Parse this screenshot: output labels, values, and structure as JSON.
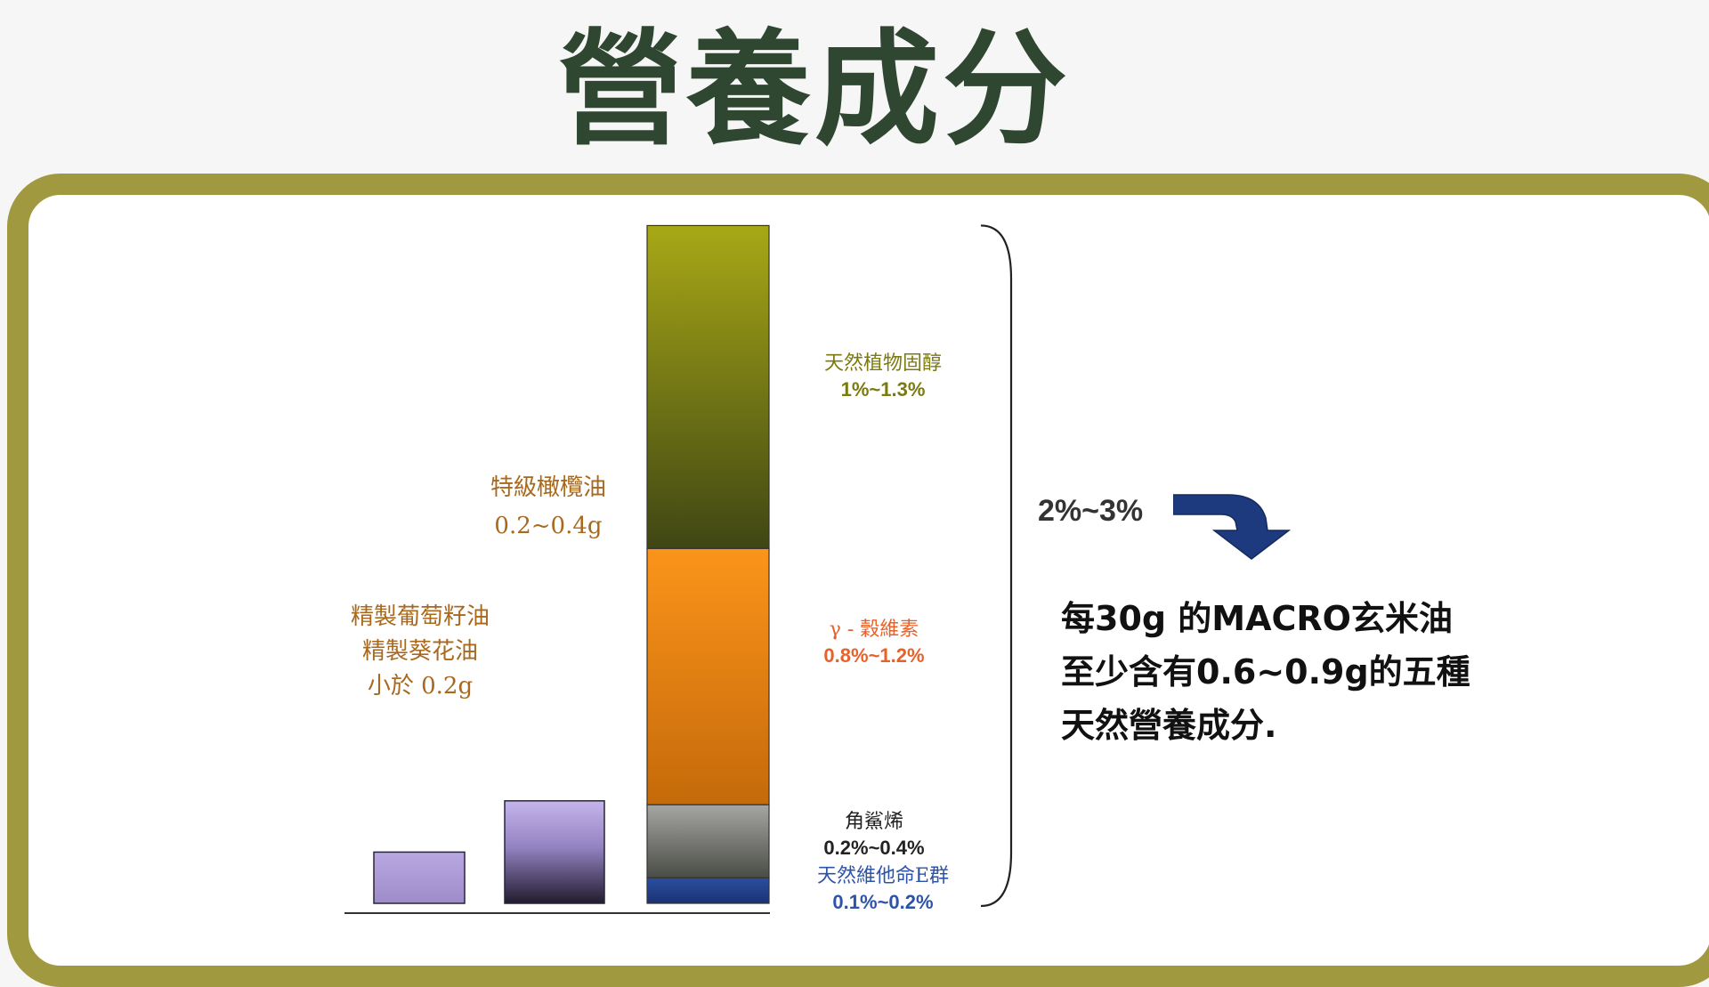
{
  "title": "營養成分",
  "chart_data": {
    "type": "bar",
    "title": "",
    "xlabel": "",
    "ylabel": "",
    "bars": [
      {
        "label_lines": [
          "精製葡萄籽油",
          "精製葵花油",
          "小於 0.2g"
        ],
        "value": 0.2,
        "color": "#b7a6de"
      },
      {
        "label_lines": [
          "特級橄欖油",
          "0.2~0.4g"
        ],
        "value": 0.4,
        "color": "#b7a6de"
      }
    ],
    "stacked_bar": {
      "segments": [
        {
          "name": "天然維他命E群",
          "range_text": "0.1%~0.2%",
          "value": 0.1,
          "color": "#26418e",
          "text_color": "#2d54a8"
        },
        {
          "name": "角鯊烯",
          "range_text": "0.2%~0.4%",
          "value": 0.285,
          "color": "#9a9a96",
          "text_color": "#222222"
        },
        {
          "name": "γ - 穀維素",
          "range_text": "0.8%~1.2%",
          "value": 1.0,
          "color": "#f5901c",
          "text_color": "#e8602a"
        },
        {
          "name": "天然植物固醇",
          "range_text": "1%~1.3%",
          "value": 1.26,
          "color": "#9e9c14",
          "text_color": "#7a7a10"
        }
      ],
      "total_range_text": "2%~3%"
    },
    "ylim": [
      0,
      2.65
    ]
  },
  "description_lines": [
    "每30g 的MACRO玄米油",
    "至少含有0.6~0.9g的五種",
    "天然營養成分."
  ],
  "colors": {
    "title": "#2f4731",
    "frame": "#a1993f",
    "arrow": "#1d3a7e"
  },
  "icons": {
    "arrow": "curved-down-arrow-icon"
  }
}
